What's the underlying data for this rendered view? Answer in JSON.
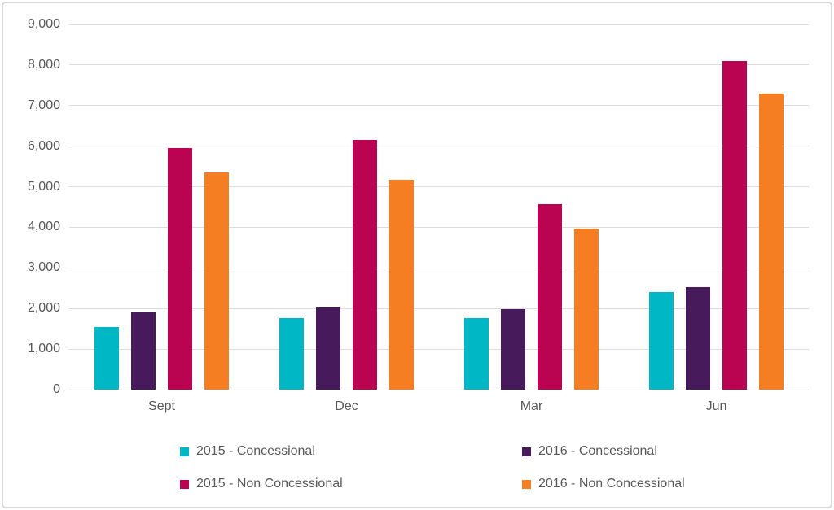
{
  "chart_data": {
    "type": "bar",
    "categories": [
      "Sept",
      "Dec",
      "Mar",
      "Jun"
    ],
    "series": [
      {
        "name": "2015 - Concessional",
        "color": "#00B7C6",
        "values": [
          1550,
          1760,
          1760,
          2400
        ]
      },
      {
        "name": "2016 - Concessional",
        "color": "#471A5B",
        "values": [
          1900,
          2020,
          1980,
          2530
        ]
      },
      {
        "name": "2015 - Non Concessional",
        "color": "#BB0451",
        "values": [
          5950,
          6150,
          4570,
          8100
        ]
      },
      {
        "name": "2016 - Non Concessional",
        "color": "#F57E22",
        "values": [
          5350,
          5170,
          3960,
          7300
        ]
      }
    ],
    "ylim": [
      0,
      9000
    ],
    "ytick_interval": 1000,
    "ytick_labels": [
      "0",
      "1,000",
      "2,000",
      "3,000",
      "4,000",
      "5,000",
      "6,000",
      "7,000",
      "8,000",
      "9,000"
    ],
    "grid": true,
    "legend_position": "bottom",
    "legend_columns": 2
  },
  "colors": {
    "axis_text": "#595959",
    "gridline": "#DCDCDC",
    "frame_border": "#D9D9D9",
    "background": "#FFFFFF"
  }
}
